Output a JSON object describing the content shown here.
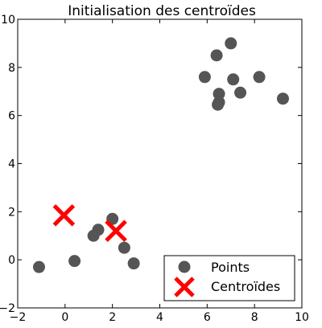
{
  "chart_data": {
    "type": "scatter",
    "title": "Initialisation des centroïdes",
    "xlabel": "",
    "ylabel": "",
    "xlim": [
      -2,
      10
    ],
    "ylim": [
      -2,
      10
    ],
    "grid": false,
    "legend_position": "bottom-right",
    "xticks": [
      -2,
      0,
      2,
      4,
      6,
      8,
      10
    ],
    "yticks": [
      -2,
      0,
      2,
      4,
      6,
      8,
      10
    ],
    "series": [
      {
        "name": "Points",
        "marker": "circle",
        "color": "#555555",
        "points": [
          {
            "x": -1.1,
            "y": -0.3
          },
          {
            "x": 0.4,
            "y": -0.05
          },
          {
            "x": 1.2,
            "y": 1.0
          },
          {
            "x": 1.4,
            "y": 1.25
          },
          {
            "x": 2.0,
            "y": 1.7
          },
          {
            "x": 2.5,
            "y": 0.5
          },
          {
            "x": 2.9,
            "y": -0.15
          },
          {
            "x": 5.9,
            "y": 7.6
          },
          {
            "x": 6.4,
            "y": 8.5
          },
          {
            "x": 6.5,
            "y": 6.9
          },
          {
            "x": 6.5,
            "y": 6.55
          },
          {
            "x": 6.45,
            "y": 6.45
          },
          {
            "x": 7.0,
            "y": 9.0
          },
          {
            "x": 7.1,
            "y": 7.5
          },
          {
            "x": 7.4,
            "y": 6.95
          },
          {
            "x": 8.2,
            "y": 7.6
          },
          {
            "x": 9.2,
            "y": 6.7
          }
        ]
      },
      {
        "name": "Centroïdes",
        "marker": "x",
        "color": "#ff0000",
        "points": [
          {
            "x": -0.05,
            "y": 1.85
          },
          {
            "x": 2.15,
            "y": 1.2
          }
        ]
      }
    ]
  }
}
